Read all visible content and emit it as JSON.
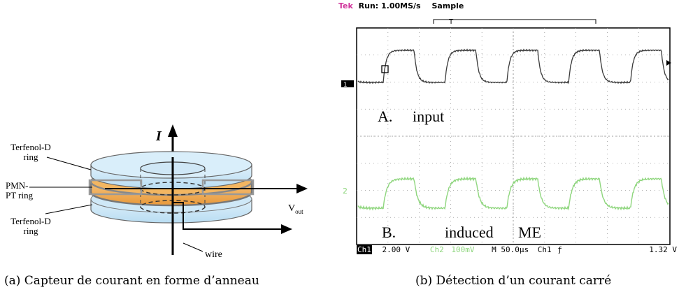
{
  "figure_a": {
    "current_symbol": "I",
    "labels": {
      "top_ring": "Terfenol-D ring",
      "middle_ring": "PMN-PT ring",
      "bottom_ring": "Terfenol-D ring",
      "wire": "wire",
      "vout": "V",
      "vout_sub": "out"
    },
    "caption": "(a) Capteur de courant en forme d’anneau"
  },
  "figure_b": {
    "header": {
      "brand": "Tek",
      "run": "Run: 1.00MS/s",
      "mode": "Sample",
      "trigger_marker": "T"
    },
    "channel1": {
      "marker": "1",
      "label_letter": "A.",
      "label_text": "input",
      "color": "#333333"
    },
    "channel2": {
      "marker": "2",
      "label_letter": "B.",
      "label_text": "induced",
      "label_text2": "ME",
      "color": "#8fd67e"
    },
    "footer": {
      "ch1": "Ch1",
      "ch1_scale": "2.00 V",
      "ch2": "Ch2",
      "ch2_scale": "100mV",
      "timebase": "M 50.0µs",
      "trigger_ch": "Ch1",
      "trigger_slope": "ƒ",
      "trigger_level": "1.32 V"
    },
    "caption": "(b) Détection d’un courant carré"
  }
}
